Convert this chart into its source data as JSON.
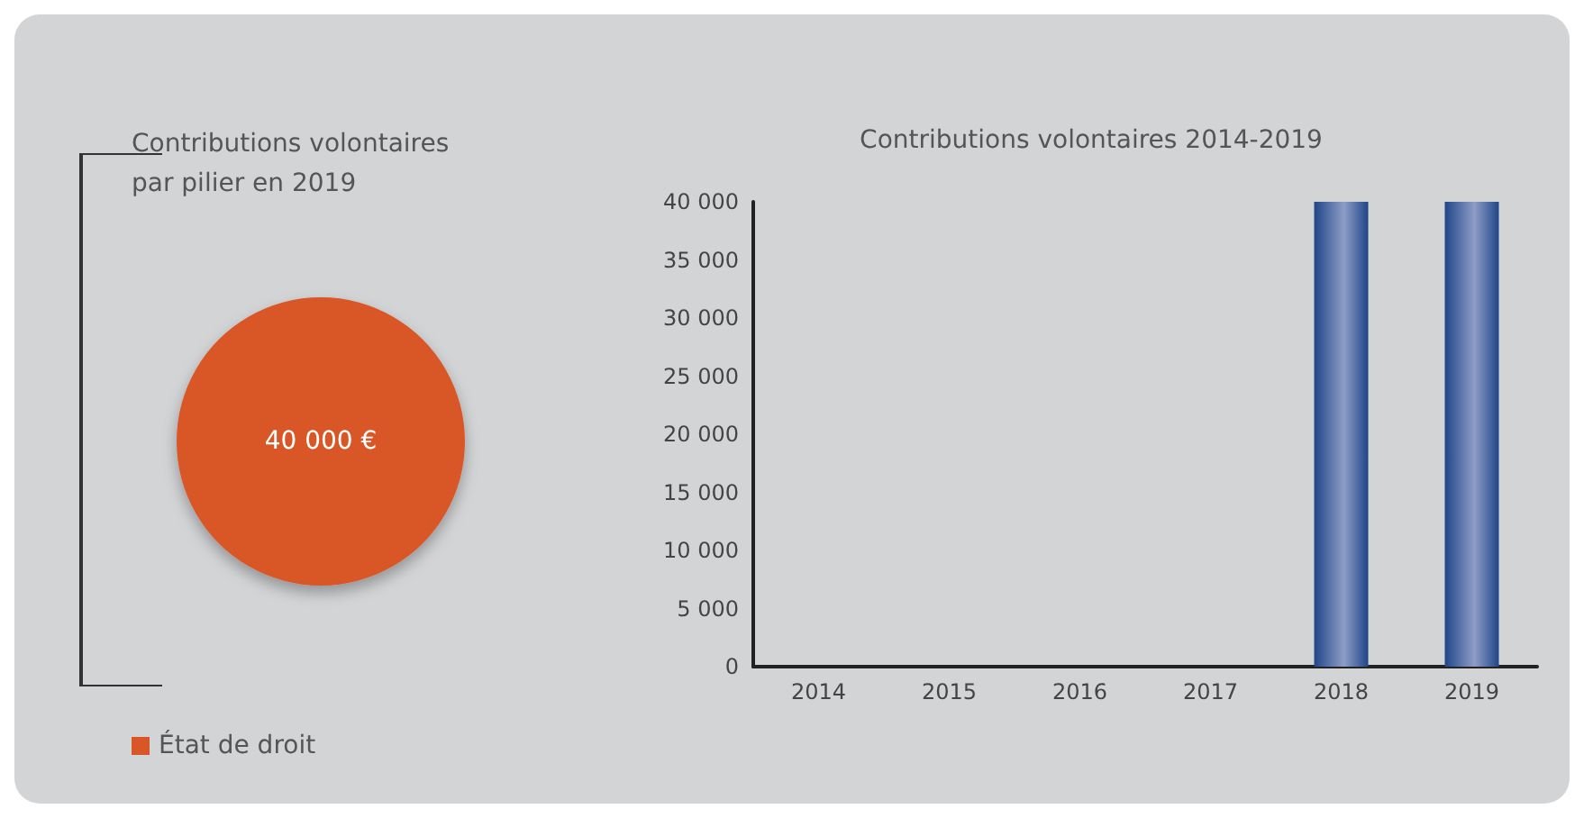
{
  "chart_data": [
    {
      "type": "pie",
      "title": "Contributions volontaires\npar pilier en 2019",
      "categories": [
        "État de droit"
      ],
      "values": [
        40000
      ],
      "colors": [
        "#d95627"
      ],
      "value_labels": [
        "40 000 €"
      ],
      "legend": "bottom left"
    },
    {
      "type": "bar",
      "title": "Contributions volontaires 2014-2019",
      "categories": [
        "2014",
        "2015",
        "2016",
        "2017",
        "2018",
        "2019"
      ],
      "values": [
        0,
        0,
        0,
        0,
        40000,
        40000
      ],
      "color": "#1f4688",
      "ylim": [
        0,
        40000
      ],
      "yticks": [
        {
          "value": 0,
          "label": "0"
        },
        {
          "value": 5000,
          "label": "5 000"
        },
        {
          "value": 10000,
          "label": "10 000"
        },
        {
          "value": 15000,
          "label": "15 000"
        },
        {
          "value": 20000,
          "label": "20 000"
        },
        {
          "value": 25000,
          "label": "25 000"
        },
        {
          "value": 30000,
          "label": "30 000"
        },
        {
          "value": 35000,
          "label": "35 000"
        },
        {
          "value": 40000,
          "label": "40 000"
        }
      ],
      "grid": false,
      "legend": false
    }
  ]
}
